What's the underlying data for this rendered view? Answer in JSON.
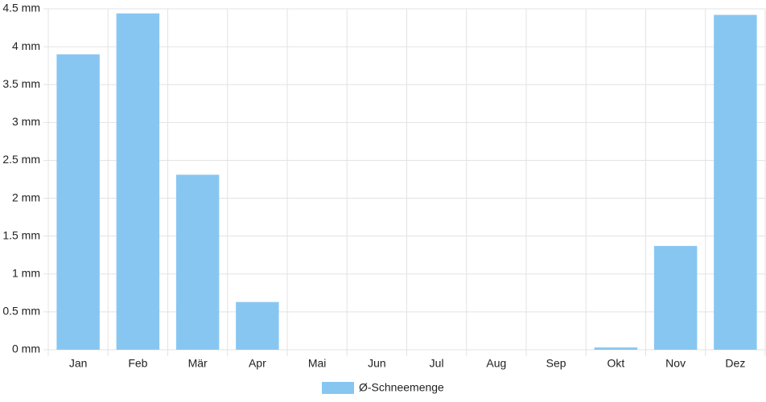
{
  "chart_data": {
    "type": "bar",
    "categories": [
      "Jan",
      "Feb",
      "Mär",
      "Apr",
      "Mai",
      "Jun",
      "Jul",
      "Aug",
      "Sep",
      "Okt",
      "Nov",
      "Dez"
    ],
    "series": [
      {
        "name": "Ø-Schneemenge",
        "color": "#88c6f2",
        "values": [
          3.9,
          4.44,
          2.31,
          0.63,
          0,
          0,
          0,
          0,
          0,
          0.03,
          1.37,
          4.42
        ]
      }
    ],
    "ylim": [
      0,
      4.5
    ],
    "yticks": [
      {
        "value": 0,
        "label": "0 mm"
      },
      {
        "value": 0.5,
        "label": "0.5 mm"
      },
      {
        "value": 1,
        "label": "1 mm"
      },
      {
        "value": 1.5,
        "label": "1.5 mm"
      },
      {
        "value": 2,
        "label": "2 mm"
      },
      {
        "value": 2.5,
        "label": "2.5 mm"
      },
      {
        "value": 3,
        "label": "3 mm"
      },
      {
        "value": 3.5,
        "label": "3.5 mm"
      },
      {
        "value": 4,
        "label": "4 mm"
      },
      {
        "value": 4.5,
        "label": "4.5 mm"
      }
    ],
    "grid": true,
    "legend": "bottom"
  }
}
